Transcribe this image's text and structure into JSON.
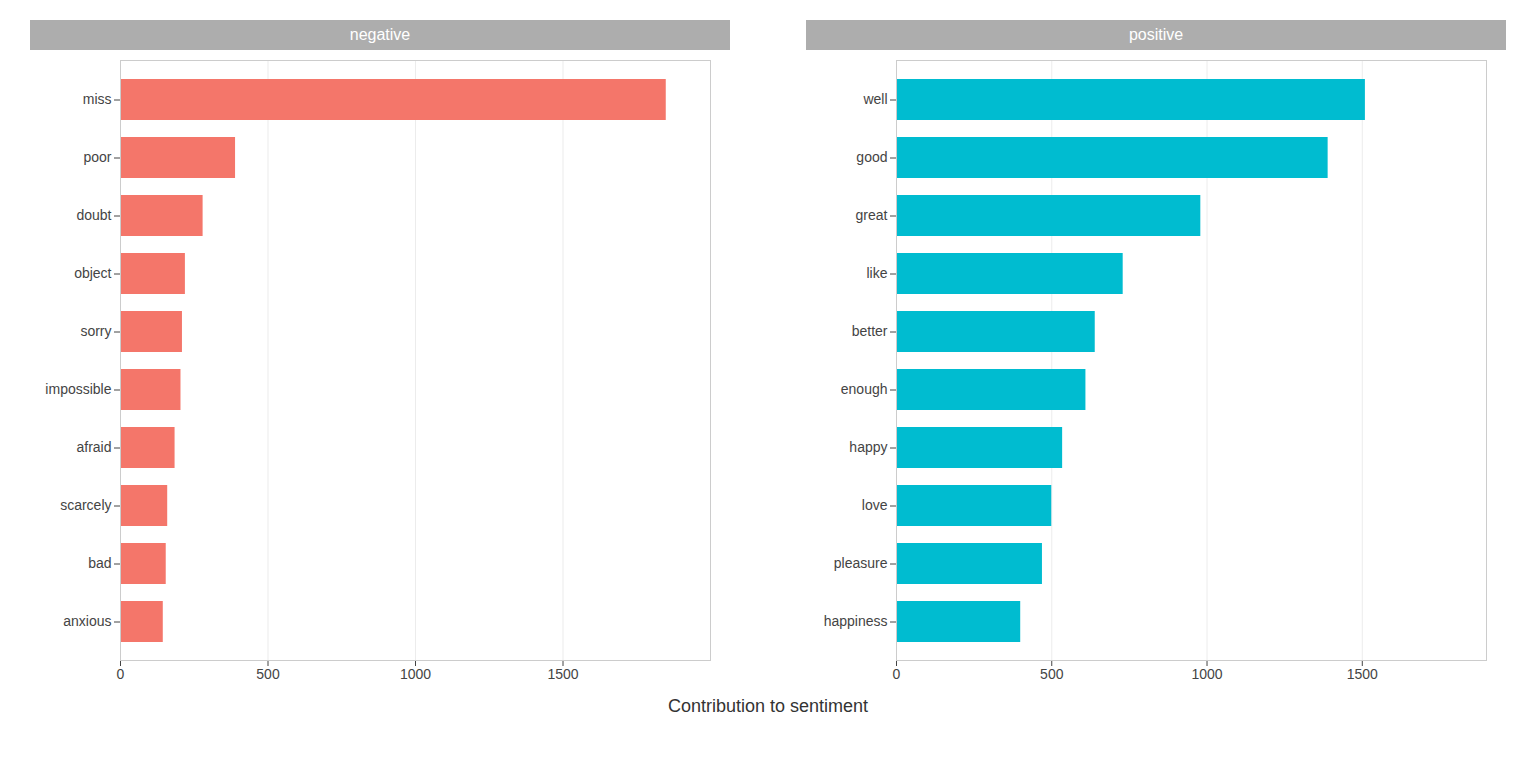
{
  "chart_data": [
    {
      "type": "bar",
      "title": "negative",
      "orientation": "horizontal",
      "categories": [
        "miss",
        "poor",
        "doubt",
        "object",
        "sorry",
        "impossible",
        "afraid",
        "scarcely",
        "bad",
        "anxious"
      ],
      "values": [
        1850,
        390,
        280,
        220,
        210,
        205,
        185,
        160,
        155,
        145
      ],
      "color": "#F4766A",
      "xlim": [
        0,
        2000
      ],
      "xticks": [
        0,
        500,
        1000,
        1500
      ],
      "grid": true,
      "xlabel": "Contribution to sentiment"
    },
    {
      "type": "bar",
      "title": "positive",
      "orientation": "horizontal",
      "categories": [
        "well",
        "good",
        "great",
        "like",
        "better",
        "enough",
        "happy",
        "love",
        "pleasure",
        "happiness"
      ],
      "values": [
        1510,
        1390,
        980,
        730,
        640,
        610,
        535,
        500,
        470,
        400
      ],
      "color": "#00BCD0",
      "xlim": [
        0,
        1900
      ],
      "xticks": [
        0,
        500,
        1000,
        1500
      ],
      "grid": true
    }
  ]
}
